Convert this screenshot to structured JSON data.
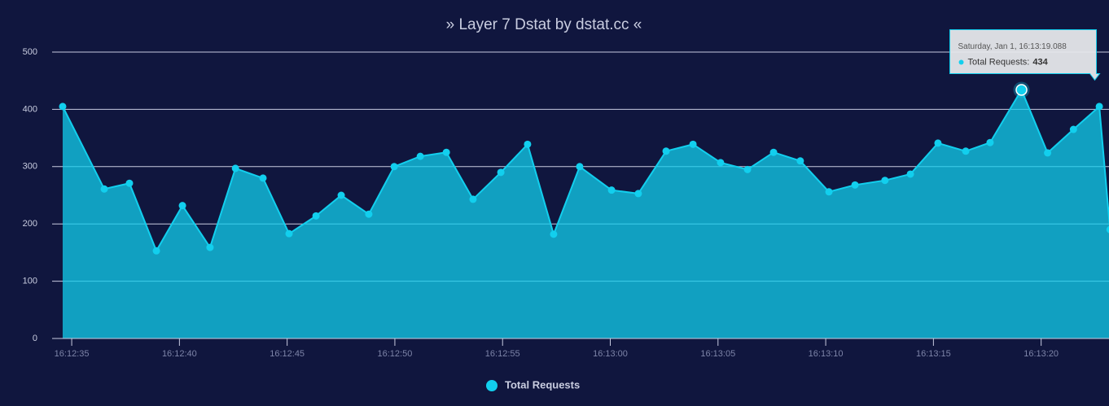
{
  "chart_data": {
    "type": "area",
    "title": "» Layer 7 Dstat by dstat.cc «",
    "x": [
      "16:12:34.58",
      "16:12:36.51",
      "16:12:37.68",
      "16:12:38.93",
      "16:12:40.14",
      "16:12:41.42",
      "16:12:42.60",
      "16:12:43.88",
      "16:12:45.09",
      "16:12:46.34",
      "16:12:47.51",
      "16:12:48.79",
      "16:12:49.97",
      "16:12:51.18",
      "16:12:52.39",
      "16:12:53.63",
      "16:12:54.92",
      "16:12:56.16",
      "16:12:57.37",
      "16:12:58.58",
      "16:13:00.06",
      "16:13:01.30",
      "16:13:02.59",
      "16:13:03.84",
      "16:13:05.12",
      "16:13:06.37",
      "16:13:07.58",
      "16:13:08.82",
      "16:13:10.15",
      "16:13:11.36",
      "16:13:12.75",
      "16:13:13.93",
      "16:13:15.21",
      "16:13:16.50",
      "16:13:17.63",
      "16:13:19.088",
      "16:13:20.30",
      "16:13:21.50",
      "16:13:22.70",
      "16:13:23.20"
    ],
    "series": [
      {
        "name": "Total Requests",
        "color": "#12cfee",
        "values": [
          405,
          261,
          271,
          153,
          232,
          159,
          297,
          280,
          183,
          214,
          250,
          217,
          300,
          318,
          325,
          243,
          290,
          339,
          182,
          300,
          259,
          253,
          327,
          339,
          307,
          295,
          325,
          310,
          256,
          268,
          276,
          287,
          341,
          327,
          342,
          434,
          324,
          365,
          405,
          190
        ]
      }
    ],
    "xlim": [
      "16:12:34.09",
      "16:13:23.15"
    ],
    "xticks": [
      "16:12:35",
      "16:12:40",
      "16:12:45",
      "16:12:50",
      "16:12:55",
      "16:13:00",
      "16:13:05",
      "16:13:10",
      "16:13:15",
      "16:13:20"
    ],
    "ylim": [
      0,
      500
    ],
    "yticks": [
      0,
      100,
      200,
      300,
      400,
      500
    ],
    "grid": true,
    "legend": "bottom",
    "tooltip": {
      "header": "Saturday, Jan 1, 16:13:19.088",
      "label": "Total Requests:",
      "value": 434
    }
  }
}
